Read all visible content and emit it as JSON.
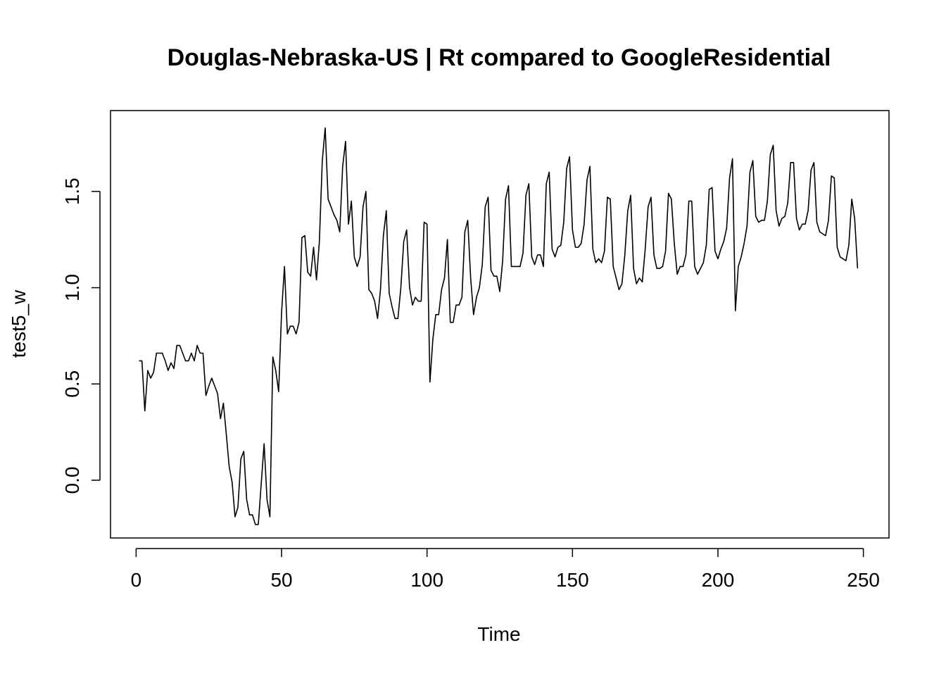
{
  "chart_data": {
    "type": "line",
    "title": "Douglas-Nebraska-US | Rt compared to GoogleResidential",
    "xlabel": "Time",
    "ylabel": "test5_w",
    "xlim": [
      -8.8,
      258.8
    ],
    "ylim": [
      -0.3,
      1.92
    ],
    "x_ticks": [
      0,
      50,
      100,
      150,
      200,
      250
    ],
    "y_ticks": [
      0.0,
      0.5,
      1.0,
      1.5
    ],
    "x_tick_labels": [
      "0",
      "50",
      "100",
      "150",
      "200",
      "250"
    ],
    "y_tick_labels": [
      "0.0",
      "0.5",
      "1.0",
      "1.5"
    ],
    "grid": false,
    "series": [
      {
        "x_start": 1,
        "values": [
          0.62,
          0.62,
          0.36,
          0.57,
          0.53,
          0.56,
          0.66,
          0.66,
          0.66,
          0.62,
          0.57,
          0.61,
          0.58,
          0.7,
          0.7,
          0.66,
          0.62,
          0.62,
          0.66,
          0.62,
          0.7,
          0.66,
          0.66,
          0.44,
          0.49,
          0.53,
          0.49,
          0.45,
          0.32,
          0.4,
          0.24,
          0.07,
          -0.01,
          -0.19,
          -0.14,
          0.11,
          0.15,
          -0.1,
          -0.18,
          -0.18,
          -0.23,
          -0.23,
          -0.02,
          0.19,
          -0.1,
          -0.19,
          0.64,
          0.57,
          0.46,
          0.87,
          1.11,
          0.76,
          0.8,
          0.8,
          0.76,
          0.82,
          1.26,
          1.27,
          1.08,
          1.06,
          1.21,
          1.04,
          1.24,
          1.66,
          1.83,
          1.46,
          1.42,
          1.38,
          1.35,
          1.29,
          1.63,
          1.76,
          1.33,
          1.45,
          1.16,
          1.11,
          1.16,
          1.42,
          1.5,
          0.99,
          0.97,
          0.93,
          0.84,
          0.99,
          1.27,
          1.4,
          0.97,
          0.9,
          0.84,
          0.84,
          1.0,
          1.24,
          1.3,
          1.0,
          0.91,
          0.95,
          0.93,
          0.93,
          1.34,
          1.33,
          0.51,
          0.73,
          0.86,
          0.86,
          0.99,
          1.05,
          1.25,
          0.82,
          0.82,
          0.91,
          0.91,
          0.95,
          1.29,
          1.35,
          1.05,
          0.86,
          0.95,
          1.0,
          1.12,
          1.42,
          1.47,
          1.09,
          1.06,
          1.06,
          0.98,
          1.14,
          1.46,
          1.53,
          1.11,
          1.11,
          1.11,
          1.11,
          1.18,
          1.48,
          1.54,
          1.16,
          1.12,
          1.17,
          1.17,
          1.11,
          1.54,
          1.6,
          1.2,
          1.16,
          1.21,
          1.22,
          1.34,
          1.62,
          1.68,
          1.3,
          1.21,
          1.21,
          1.23,
          1.33,
          1.56,
          1.63,
          1.2,
          1.13,
          1.15,
          1.13,
          1.19,
          1.47,
          1.46,
          1.11,
          1.05,
          0.99,
          1.02,
          1.17,
          1.4,
          1.48,
          1.1,
          1.02,
          1.05,
          1.03,
          1.2,
          1.42,
          1.47,
          1.17,
          1.1,
          1.1,
          1.11,
          1.19,
          1.49,
          1.46,
          1.23,
          1.07,
          1.11,
          1.11,
          1.17,
          1.45,
          1.45,
          1.11,
          1.07,
          1.1,
          1.13,
          1.22,
          1.51,
          1.52,
          1.19,
          1.15,
          1.2,
          1.24,
          1.31,
          1.57,
          1.67,
          0.88,
          1.11,
          1.16,
          1.23,
          1.32,
          1.6,
          1.66,
          1.37,
          1.34,
          1.35,
          1.35,
          1.45,
          1.69,
          1.74,
          1.4,
          1.32,
          1.36,
          1.37,
          1.44,
          1.65,
          1.65,
          1.36,
          1.3,
          1.33,
          1.33,
          1.4,
          1.61,
          1.65,
          1.34,
          1.29,
          1.28,
          1.27,
          1.35,
          1.58,
          1.57,
          1.21,
          1.16,
          1.15,
          1.14,
          1.22,
          1.46,
          1.36,
          1.1
        ]
      }
    ]
  }
}
